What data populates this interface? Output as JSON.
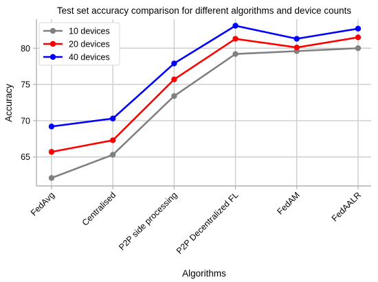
{
  "chart_data": {
    "type": "line",
    "title": "Test set accuracy comparison for different algorithms and device counts",
    "xlabel": "Algorithms",
    "ylabel": "Accuracy",
    "categories": [
      "FedAvg",
      "Centralised",
      "P2P side processing",
      "P2P Decentralized FL",
      "FedAM",
      "FedAALR"
    ],
    "ylim": [
      61,
      84
    ],
    "yticks": [
      65,
      70,
      75,
      80
    ],
    "grid": true,
    "legend_position": "top-left",
    "series": [
      {
        "name": "10 devices",
        "color": "#808080",
        "values": [
          62.1,
          65.3,
          73.4,
          79.2,
          79.6,
          80.0
        ]
      },
      {
        "name": "20 devices",
        "color": "#ff0000",
        "values": [
          65.7,
          67.3,
          75.7,
          81.3,
          80.1,
          81.5
        ]
      },
      {
        "name": "40 devices",
        "color": "#0000ff",
        "values": [
          69.2,
          70.3,
          77.9,
          83.1,
          81.3,
          82.7
        ]
      }
    ]
  }
}
